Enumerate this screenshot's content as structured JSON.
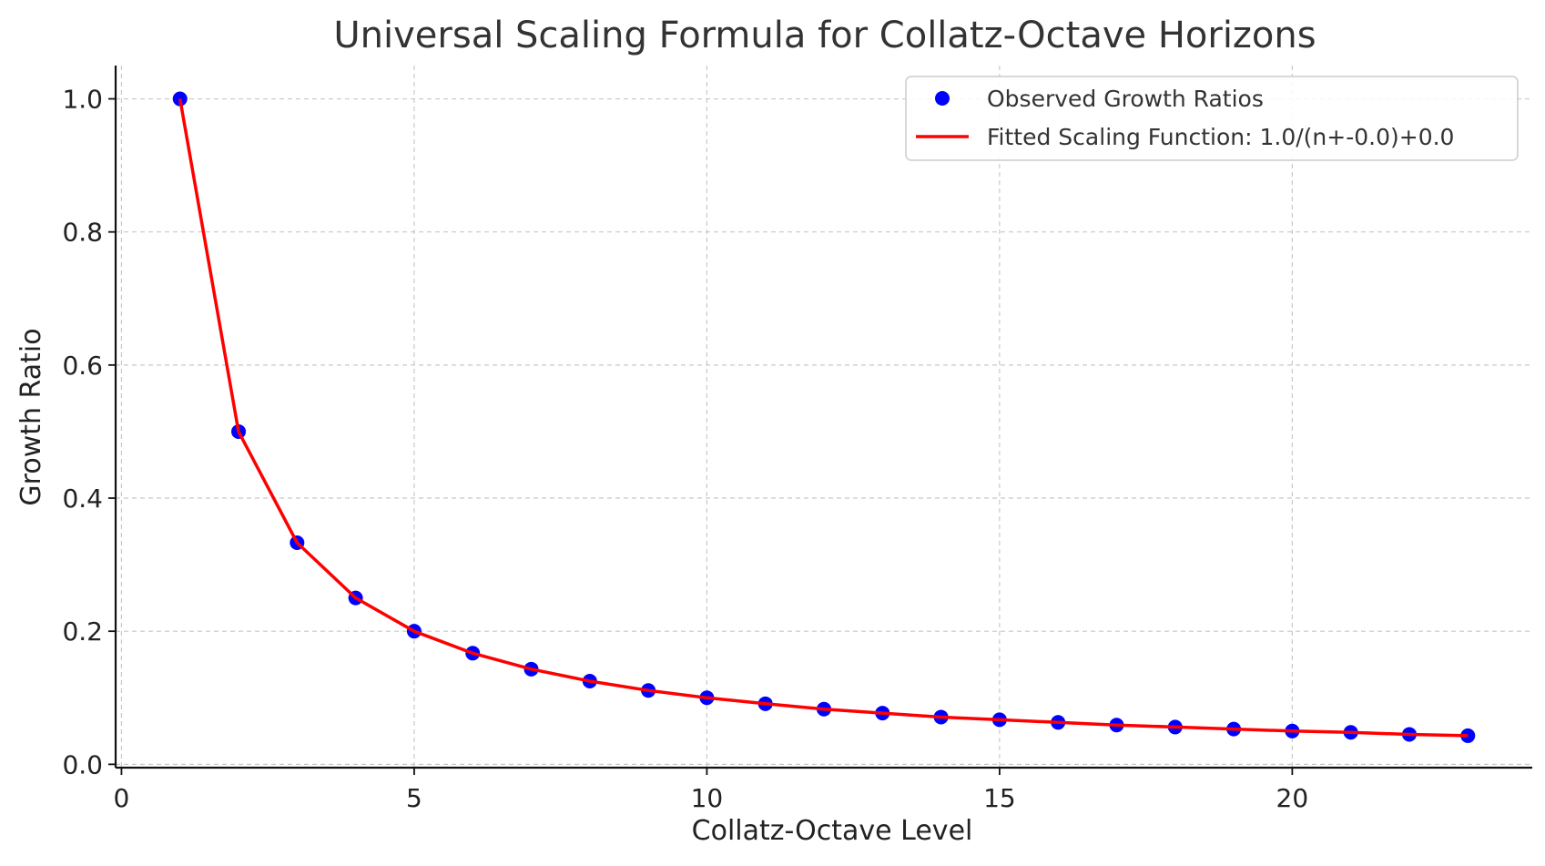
{
  "chart_data": {
    "type": "scatter",
    "title": "Universal Scaling Formula for Collatz-Octave Horizons",
    "xlabel": "Collatz-Octave Level",
    "ylabel": "Growth Ratio",
    "xlim": [
      -0.1,
      24.1
    ],
    "ylim": [
      -0.005,
      1.05
    ],
    "xticks": [
      0,
      5,
      10,
      15,
      20
    ],
    "yticks": [
      0.0,
      0.2,
      0.4,
      0.6,
      0.8,
      1.0
    ],
    "xtick_labels": [
      "0",
      "5",
      "10",
      "15",
      "20"
    ],
    "ytick_labels": [
      "0.0",
      "0.2",
      "0.4",
      "0.6",
      "0.8",
      "1.0"
    ],
    "grid": true,
    "legend_position": "top-right",
    "x": [
      1,
      2,
      3,
      4,
      5,
      6,
      7,
      8,
      9,
      10,
      11,
      12,
      13,
      14,
      15,
      16,
      17,
      18,
      19,
      20,
      21,
      22,
      23
    ],
    "series": [
      {
        "name": "Observed Growth Ratios",
        "kind": "scatter",
        "color": "#0000ff",
        "values": [
          1.0,
          0.5,
          0.333,
          0.25,
          0.2,
          0.167,
          0.143,
          0.125,
          0.111,
          0.1,
          0.091,
          0.083,
          0.077,
          0.071,
          0.067,
          0.063,
          0.059,
          0.056,
          0.053,
          0.05,
          0.048,
          0.045,
          0.043
        ]
      },
      {
        "name": "Fitted Scaling Function: 1.0/(n+-0.0)+0.0",
        "kind": "line",
        "color": "#ff0000",
        "values": [
          1.0,
          0.5,
          0.333,
          0.25,
          0.2,
          0.167,
          0.143,
          0.125,
          0.111,
          0.1,
          0.091,
          0.083,
          0.077,
          0.071,
          0.067,
          0.063,
          0.059,
          0.056,
          0.053,
          0.05,
          0.048,
          0.045,
          0.043
        ]
      }
    ]
  }
}
